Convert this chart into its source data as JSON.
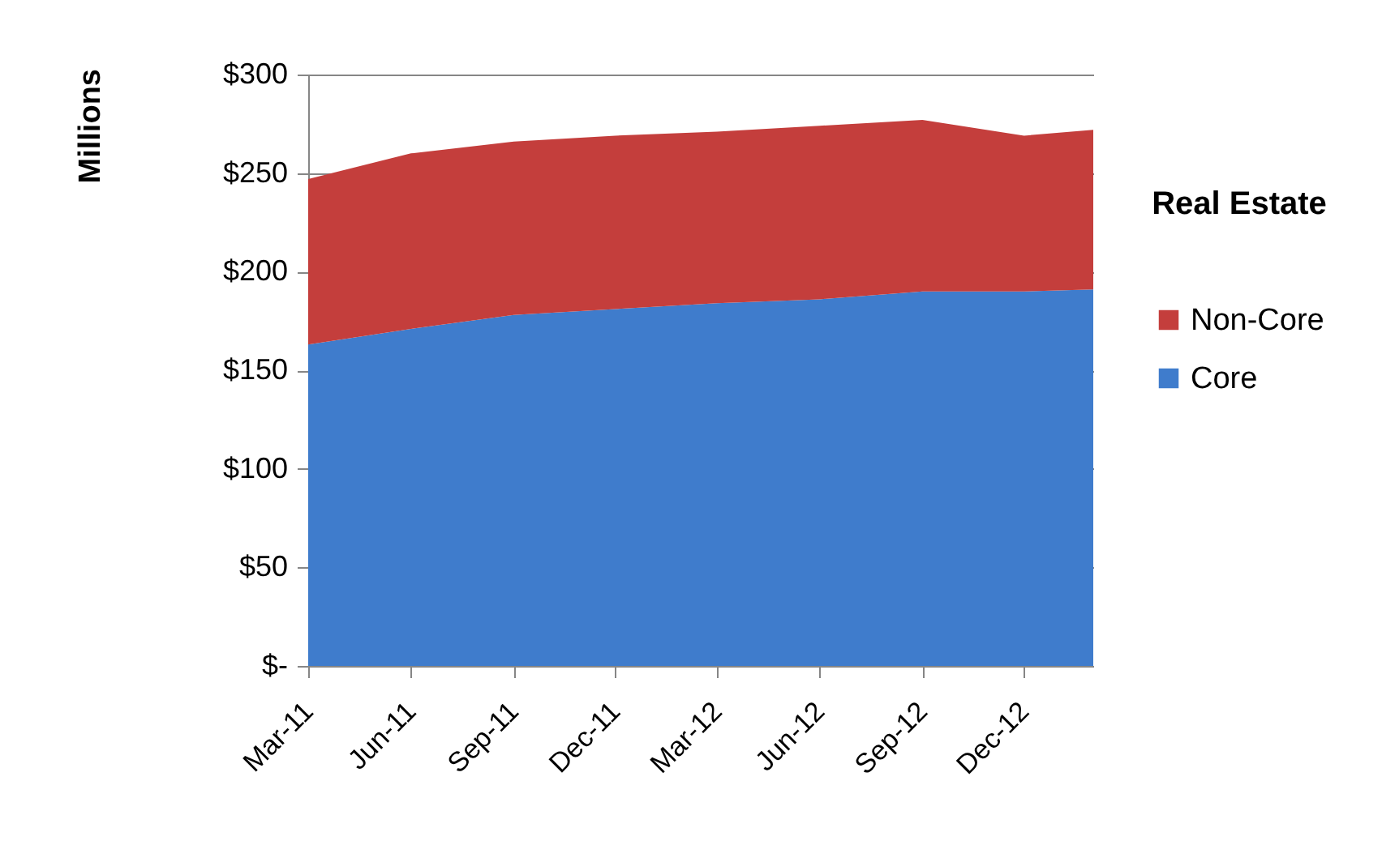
{
  "chart_data": {
    "type": "area",
    "stacked": true,
    "ylabel": "Millions",
    "legend_title": "Real Estate",
    "legend": "right",
    "grid": "y",
    "x": [
      "2011-03",
      "2011-06",
      "2011-09",
      "2011-12",
      "2012-03",
      "2012-06",
      "2012-09",
      "2012-12",
      "2013-02"
    ],
    "xlim": [
      "2011-03",
      "2013-02"
    ],
    "xticks": [
      {
        "value": "2011-03",
        "label": "Mar-11"
      },
      {
        "value": "2011-06",
        "label": "Jun-11"
      },
      {
        "value": "2011-09",
        "label": "Sep-11"
      },
      {
        "value": "2011-12",
        "label": "Dec-11"
      },
      {
        "value": "2012-03",
        "label": "Mar-12"
      },
      {
        "value": "2012-06",
        "label": "Jun-12"
      },
      {
        "value": "2012-09",
        "label": "Sep-12"
      },
      {
        "value": "2012-12",
        "label": "Dec-12"
      }
    ],
    "ylim": [
      0,
      300
    ],
    "yticks": [
      {
        "value": 0,
        "label": "$-"
      },
      {
        "value": 50,
        "label": "$50"
      },
      {
        "value": 100,
        "label": "$100"
      },
      {
        "value": 150,
        "label": "$150"
      },
      {
        "value": 200,
        "label": "$200"
      },
      {
        "value": 250,
        "label": "$250"
      },
      {
        "value": 300,
        "label": "$300"
      }
    ],
    "series": [
      {
        "name": "Core",
        "color": "#3f7ccc",
        "values": [
          163,
          171,
          178,
          181,
          184,
          186,
          190,
          190,
          191
        ]
      },
      {
        "name": "Non-Core",
        "color": "#c43e3c",
        "values": [
          84,
          89,
          88,
          88,
          87,
          88,
          87,
          79,
          81
        ]
      }
    ]
  }
}
